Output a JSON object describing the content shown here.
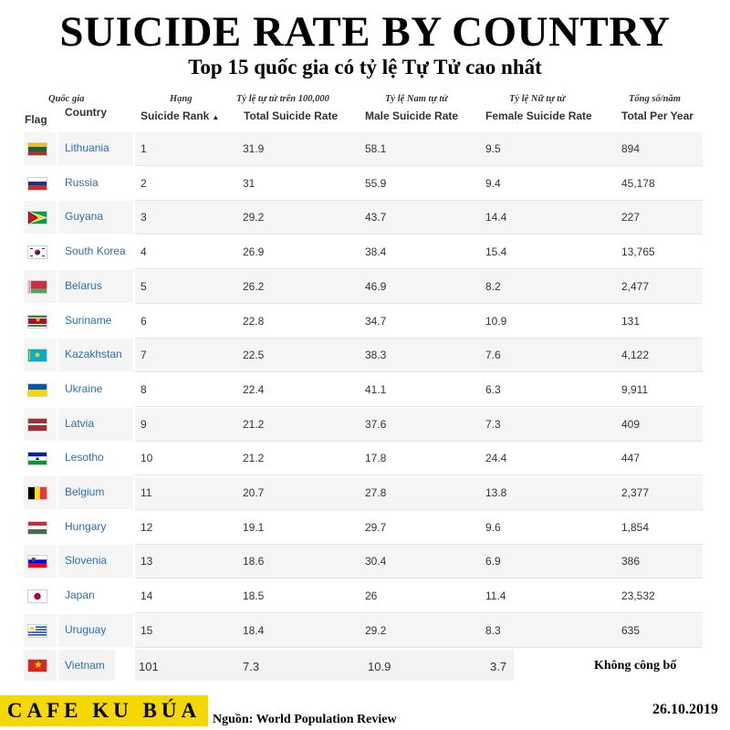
{
  "title": "SUICIDE RATE BY COUNTRY",
  "subtitle": "Top 15 quốc gia có tỷ lệ Tự Tử cao nhất",
  "columns": {
    "flag": {
      "en": "Flag"
    },
    "country": {
      "vi": "Quốc gia",
      "en": "Country"
    },
    "rank": {
      "vi": "Hạng",
      "en": "Suicide Rank",
      "sort_icon": "▲"
    },
    "total": {
      "vi": "Tỷ lệ tự tử trên 100,000",
      "en": "Total Suicide Rate"
    },
    "male": {
      "vi": "Tỷ lệ Nam tự tử",
      "en": "Male Suicide Rate"
    },
    "female": {
      "vi": "Tỷ lệ Nữ tự tử",
      "en": "Female Suicide Rate"
    },
    "per_year": {
      "vi": "Tổng số/năm",
      "en": "Total Per Year"
    }
  },
  "rows": [
    {
      "flag": "flag-lithuania-icon",
      "country": "Lithuania",
      "rank": "1",
      "total": "31.9",
      "male": "58.1",
      "female": "9.5",
      "per_year": "894"
    },
    {
      "flag": "flag-russia-icon",
      "country": "Russia",
      "rank": "2",
      "total": "31",
      "male": "55.9",
      "female": "9.4",
      "per_year": "45,178"
    },
    {
      "flag": "flag-guyana-icon",
      "country": "Guyana",
      "rank": "3",
      "total": "29.2",
      "male": "43.7",
      "female": "14.4",
      "per_year": "227"
    },
    {
      "flag": "flag-south-korea-icon",
      "country": "South Korea",
      "rank": "4",
      "total": "26.9",
      "male": "38.4",
      "female": "15.4",
      "per_year": "13,765"
    },
    {
      "flag": "flag-belarus-icon",
      "country": "Belarus",
      "rank": "5",
      "total": "26.2",
      "male": "46.9",
      "female": "8.2",
      "per_year": "2,477"
    },
    {
      "flag": "flag-suriname-icon",
      "country": "Suriname",
      "rank": "6",
      "total": "22.8",
      "male": "34.7",
      "female": "10.9",
      "per_year": "131"
    },
    {
      "flag": "flag-kazakhstan-icon",
      "country": "Kazakhstan",
      "rank": "7",
      "total": "22.5",
      "male": "38.3",
      "female": "7.6",
      "per_year": "4,122"
    },
    {
      "flag": "flag-ukraine-icon",
      "country": "Ukraine",
      "rank": "8",
      "total": "22.4",
      "male": "41.1",
      "female": "6.3",
      "per_year": "9,911"
    },
    {
      "flag": "flag-latvia-icon",
      "country": "Latvia",
      "rank": "9",
      "total": "21.2",
      "male": "37.6",
      "female": "7.3",
      "per_year": "409"
    },
    {
      "flag": "flag-lesotho-icon",
      "country": "Lesotho",
      "rank": "10",
      "total": "21.2",
      "male": "17.8",
      "female": "24.4",
      "per_year": "447"
    },
    {
      "flag": "flag-belgium-icon",
      "country": "Belgium",
      "rank": "11",
      "total": "20.7",
      "male": "27.8",
      "female": "13.8",
      "per_year": "2,377"
    },
    {
      "flag": "flag-hungary-icon",
      "country": "Hungary",
      "rank": "12",
      "total": "19.1",
      "male": "29.7",
      "female": "9.6",
      "per_year": "1,854"
    },
    {
      "flag": "flag-slovenia-icon",
      "country": "Slovenia",
      "rank": "13",
      "total": "18.6",
      "male": "30.4",
      "female": "6.9",
      "per_year": "386"
    },
    {
      "flag": "flag-japan-icon",
      "country": "Japan",
      "rank": "14",
      "total": "18.5",
      "male": "26",
      "female": "11.4",
      "per_year": "23,532"
    },
    {
      "flag": "flag-uruguay-icon",
      "country": "Uruguay",
      "rank": "15",
      "total": "18.4",
      "male": "29.2",
      "female": "8.3",
      "per_year": "635"
    }
  ],
  "vietnam": {
    "flag": "flag-vietnam-icon",
    "country": "Vietnam",
    "rank": "101",
    "total": "7.3",
    "male": "10.9",
    "female": "3.7",
    "per_year": "Không công bố"
  },
  "footer": {
    "brand": "CAFE KU BÚA",
    "source": "Nguồn: World Population Review",
    "date": "26.10.2019"
  },
  "colors": {
    "brand_yellow": "#f5d800",
    "country_link": "#2a6fb0",
    "row_alt": "#f5f5f5"
  }
}
